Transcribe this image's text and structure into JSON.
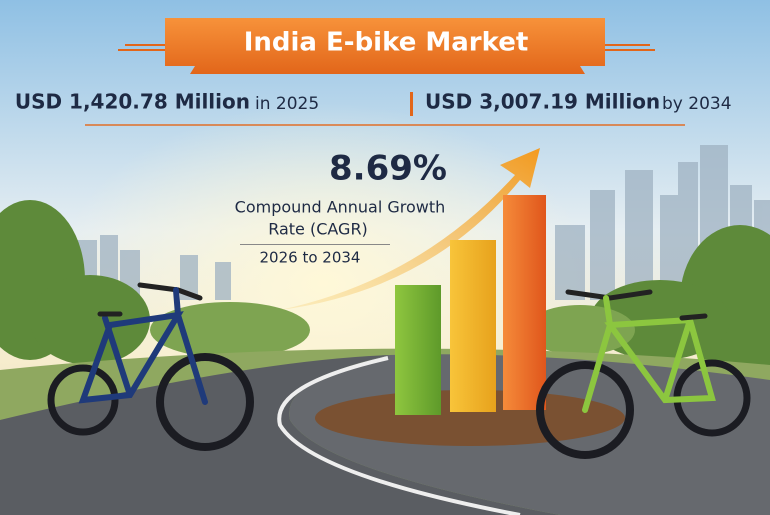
{
  "header": {
    "title": "India E-bike Market"
  },
  "stats": [
    {
      "amount": "USD 1,420.78 Million",
      "period": "in 2025"
    },
    {
      "amount": "USD 3,007.19 Million",
      "period": "by 2034"
    }
  ],
  "cagr": {
    "value": "8.69%",
    "label_line1": "Compound Annual Growth",
    "label_line2": "Rate (CAGR)",
    "period": "2026 to 2034"
  }
}
